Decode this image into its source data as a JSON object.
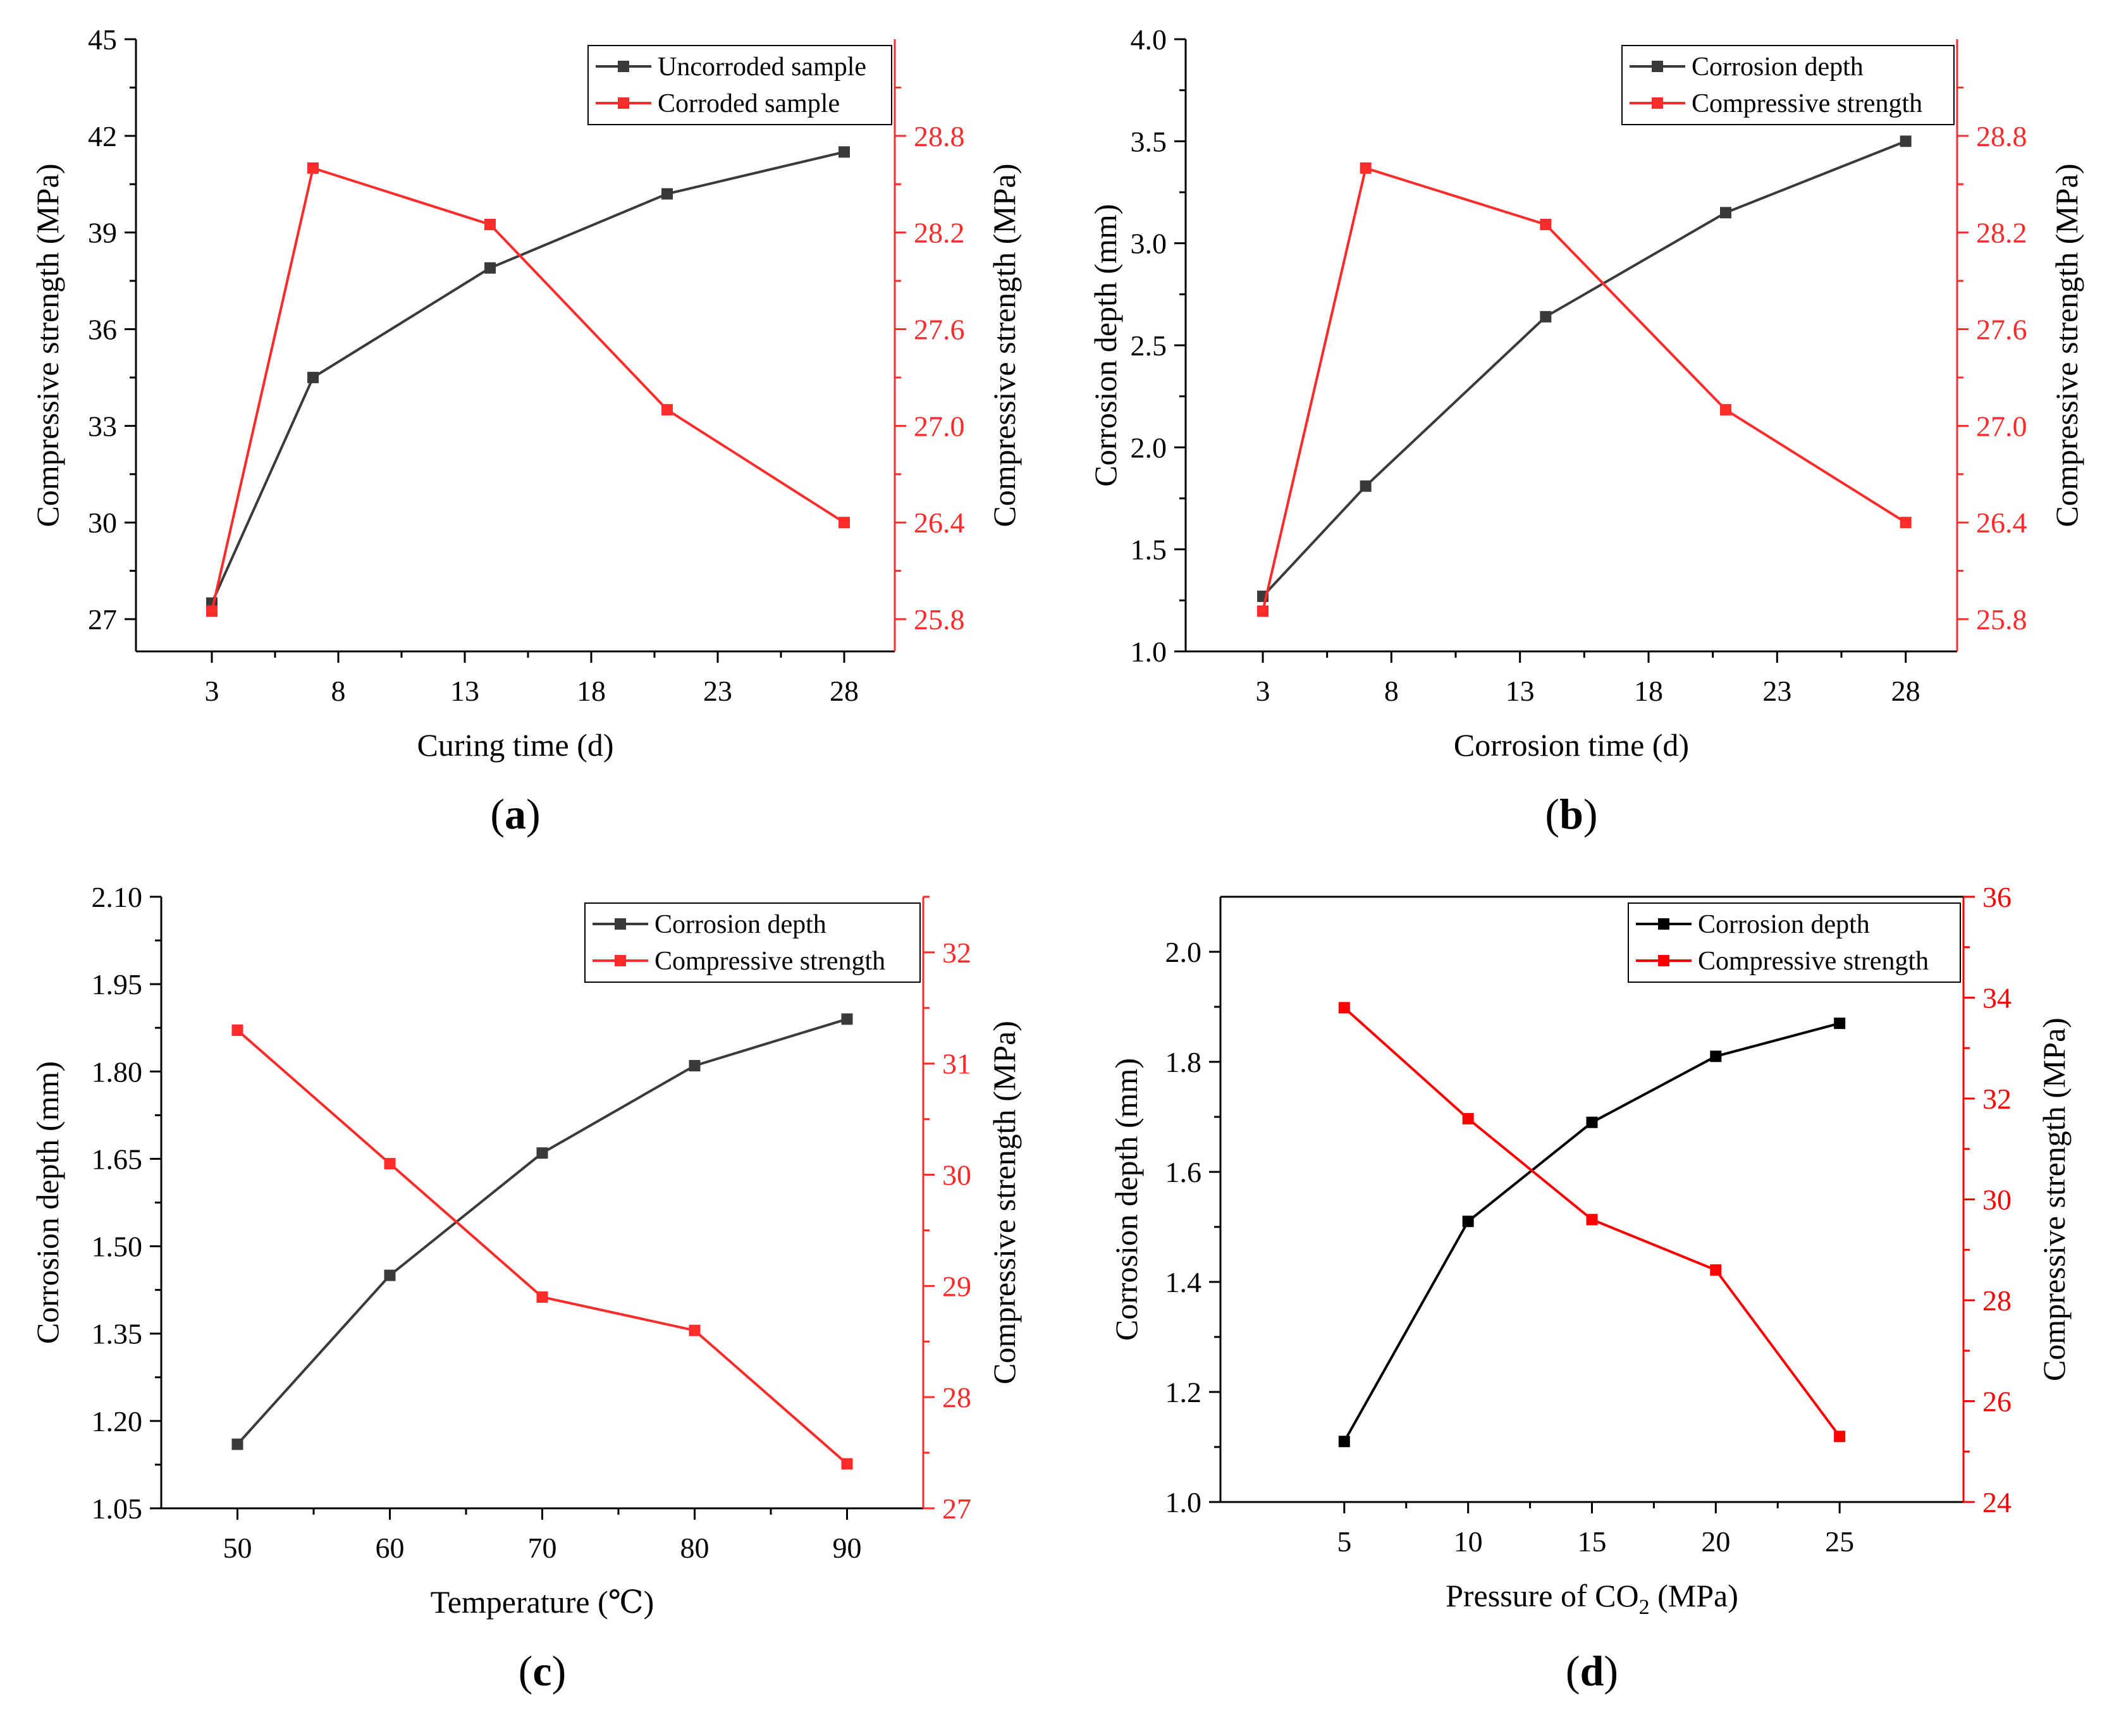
{
  "colors": {
    "black_series": "#3a3a3a",
    "black_series_d": "#000000",
    "red": "#ff2a2a",
    "red_d": "#ff0000",
    "axis": "#000000"
  },
  "chart_data": [
    {
      "id": "a",
      "type": "line",
      "panel_label": "a",
      "xlabel": "Curing time (d)",
      "ylabel_left": "Compressive strength (MPa)",
      "ylabel_right": "Compressive strength (MPa)",
      "x_range": [
        0,
        30
      ],
      "y_left_range": [
        26,
        45
      ],
      "y_right_range": [
        25.6,
        29.4
      ],
      "x_ticks": [
        3,
        8,
        13,
        18,
        23,
        28
      ],
      "x_tick_labels": [
        "3",
        "8",
        "13",
        "18",
        "23",
        "28"
      ],
      "y_left_ticks": [
        27,
        30,
        33,
        36,
        39,
        42,
        45
      ],
      "y_left_tick_labels": [
        "27",
        "30",
        "33",
        "36",
        "39",
        "42",
        "45"
      ],
      "y_right_ticks": [
        25.8,
        26.4,
        27.0,
        27.6,
        28.2,
        28.8
      ],
      "y_right_tick_labels": [
        "25.8",
        "26.4",
        "27.0",
        "27.6",
        "28.2",
        "28.8"
      ],
      "series": [
        {
          "name": "Uncorroded sample",
          "axis": "left",
          "color_key": "black_series",
          "x": [
            3,
            7,
            14,
            21,
            28
          ],
          "values": [
            27.5,
            34.5,
            37.9,
            40.2,
            41.5
          ]
        },
        {
          "name": "Corroded sample",
          "axis": "right",
          "color_key": "red",
          "x": [
            3,
            7,
            14,
            21,
            28
          ],
          "values": [
            25.85,
            28.6,
            28.25,
            27.1,
            26.4
          ]
        }
      ]
    },
    {
      "id": "b",
      "type": "line",
      "panel_label": "b",
      "xlabel": "Corrosion time (d)",
      "ylabel_left": "Corrosion depth (mm)",
      "ylabel_right": "Compressive strength (MPa)",
      "x_range": [
        0,
        30
      ],
      "y_left_range": [
        1.0,
        4.0
      ],
      "y_right_range": [
        25.6,
        29.4
      ],
      "x_ticks": [
        3,
        8,
        13,
        18,
        23,
        28
      ],
      "x_tick_labels": [
        "3",
        "8",
        "13",
        "18",
        "23",
        "28"
      ],
      "y_left_ticks": [
        1.0,
        1.5,
        2.0,
        2.5,
        3.0,
        3.5,
        4.0
      ],
      "y_left_tick_labels": [
        "1.0",
        "1.5",
        "2.0",
        "2.5",
        "3.0",
        "3.5",
        "4.0"
      ],
      "y_right_ticks": [
        25.8,
        26.4,
        27.0,
        27.6,
        28.2,
        28.8
      ],
      "y_right_tick_labels": [
        "25.8",
        "26.4",
        "27.0",
        "27.6",
        "28.2",
        "28.8"
      ],
      "series": [
        {
          "name": "Corrosion depth",
          "axis": "left",
          "color_key": "black_series",
          "x": [
            3,
            7,
            14,
            21,
            28
          ],
          "values": [
            1.27,
            1.81,
            2.64,
            3.15,
            3.5
          ]
        },
        {
          "name": "Compressive strength",
          "axis": "right",
          "color_key": "red",
          "x": [
            3,
            7,
            14,
            21,
            28
          ],
          "values": [
            25.85,
            28.6,
            28.25,
            27.1,
            26.4
          ]
        }
      ]
    },
    {
      "id": "c",
      "type": "line",
      "panel_label": "c",
      "xlabel": "Temperature (℃)",
      "ylabel_left": "Corrosion depth (mm)",
      "ylabel_right": "Compressive strength (MPa)",
      "x_range": [
        45,
        95
      ],
      "y_left_range": [
        1.05,
        2.1
      ],
      "y_right_range": [
        27,
        32.5
      ],
      "x_ticks": [
        50,
        60,
        70,
        80,
        90
      ],
      "x_tick_labels": [
        "50",
        "60",
        "70",
        "80",
        "90"
      ],
      "y_left_ticks": [
        1.05,
        1.2,
        1.35,
        1.5,
        1.65,
        1.8,
        1.95,
        2.1
      ],
      "y_left_tick_labels": [
        "1.05",
        "1.20",
        "1.35",
        "1.50",
        "1.65",
        "1.80",
        "1.95",
        "2.10"
      ],
      "y_right_ticks": [
        27,
        28,
        29,
        30,
        31,
        32
      ],
      "y_right_tick_labels": [
        "27",
        "28",
        "29",
        "30",
        "31",
        "32"
      ],
      "series": [
        {
          "name": "Corrosion depth",
          "axis": "left",
          "color_key": "black_series",
          "x": [
            50,
            60,
            70,
            80,
            90
          ],
          "values": [
            1.16,
            1.45,
            1.66,
            1.81,
            1.89
          ]
        },
        {
          "name": "Compressive strength",
          "axis": "right",
          "color_key": "red",
          "x": [
            50,
            60,
            70,
            80,
            90
          ],
          "values": [
            31.3,
            30.1,
            28.9,
            28.6,
            27.4
          ]
        }
      ]
    },
    {
      "id": "d",
      "type": "line",
      "panel_label": "d",
      "xlabel": "Pressure of CO",
      "xlabel_sub": "2",
      "xlabel_suffix": " (MPa)",
      "ylabel_left": "Corrosion depth (mm)",
      "ylabel_right": "Compressive strength (MPa)",
      "x_range": [
        0,
        30
      ],
      "y_left_range": [
        1.0,
        2.1
      ],
      "y_right_range": [
        24,
        36
      ],
      "x_ticks": [
        5,
        10,
        15,
        20,
        25
      ],
      "x_tick_labels": [
        "5",
        "10",
        "15",
        "20",
        "25"
      ],
      "y_left_ticks": [
        1.0,
        1.2,
        1.4,
        1.6,
        1.8,
        2.0
      ],
      "y_left_tick_labels": [
        "1.0",
        "1.2",
        "1.4",
        "1.6",
        "1.8",
        "2.0"
      ],
      "y_right_ticks": [
        24,
        26,
        28,
        30,
        32,
        34,
        36
      ],
      "y_right_tick_labels": [
        "24",
        "26",
        "28",
        "30",
        "32",
        "34",
        "36"
      ],
      "series": [
        {
          "name": "Corrosion depth",
          "axis": "left",
          "color_key": "black_series_d",
          "x": [
            5,
            10,
            15,
            20,
            25
          ],
          "values": [
            1.11,
            1.51,
            1.69,
            1.81,
            1.87
          ]
        },
        {
          "name": "Compressive strength",
          "axis": "right",
          "color_key": "red_d",
          "x": [
            5,
            10,
            15,
            20,
            25
          ],
          "values": [
            33.8,
            31.6,
            29.6,
            28.6,
            25.3
          ]
        }
      ]
    }
  ]
}
